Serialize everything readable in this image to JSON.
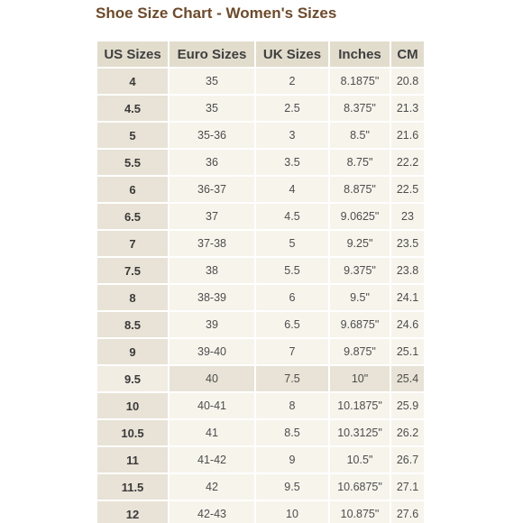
{
  "title": "Shoe Size Chart - Women's Sizes",
  "headers": [
    "US Sizes",
    "Euro Sizes",
    "UK Sizes",
    "Inches",
    "CM"
  ],
  "highlight_row": 11,
  "rows": [
    [
      "4",
      "35",
      "2",
      "8.1875\"",
      "20.8"
    ],
    [
      "4.5",
      "35",
      "2.5",
      "8.375\"",
      "21.3"
    ],
    [
      "5",
      "35-36",
      "3",
      "8.5\"",
      "21.6"
    ],
    [
      "5.5",
      "36",
      "3.5",
      "8.75\"",
      "22.2"
    ],
    [
      "6",
      "36-37",
      "4",
      "8.875\"",
      "22.5"
    ],
    [
      "6.5",
      "37",
      "4.5",
      "9.0625\"",
      "23"
    ],
    [
      "7",
      "37-38",
      "5",
      "9.25\"",
      "23.5"
    ],
    [
      "7.5",
      "38",
      "5.5",
      "9.375\"",
      "23.8"
    ],
    [
      "8",
      "38-39",
      "6",
      "9.5\"",
      "24.1"
    ],
    [
      "8.5",
      "39",
      "6.5",
      "9.6875\"",
      "24.6"
    ],
    [
      "9",
      "39-40",
      "7",
      "9.875\"",
      "25.1"
    ],
    [
      "9.5",
      "40",
      "7.5",
      "10\"",
      "25.4"
    ],
    [
      "10",
      "40-41",
      "8",
      "10.1875\"",
      "25.9"
    ],
    [
      "10.5",
      "41",
      "8.5",
      "10.3125\"",
      "26.2"
    ],
    [
      "11",
      "41-42",
      "9",
      "10.5\"",
      "26.7"
    ],
    [
      "11.5",
      "42",
      "9.5",
      "10.6875\"",
      "27.1"
    ],
    [
      "12",
      "42-43",
      "10",
      "10.875\"",
      "27.6"
    ]
  ]
}
